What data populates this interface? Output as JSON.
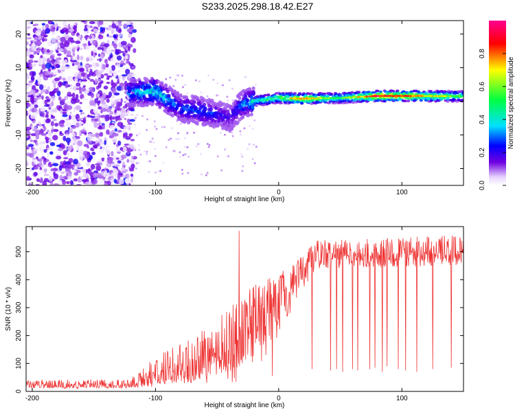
{
  "title": "S233.2025.298.18.42.E27",
  "chart_data": [
    {
      "type": "heatmap",
      "xlabel": "Height of straight line (km)",
      "ylabel": "Frequency (Hz)",
      "xlim": [
        -205,
        150
      ],
      "ylim": [
        -25,
        24
      ],
      "xticks": [
        -200,
        -100,
        0,
        100
      ],
      "yticks": [
        -20,
        -10,
        0,
        10,
        20
      ],
      "colorbar": {
        "label": "Normalized spectral amplitude",
        "range": [
          0.0,
          1.0
        ],
        "ticks": [
          0.0,
          0.2,
          0.4,
          0.6,
          0.8
        ],
        "tick_labels": [
          "0.0",
          "0.2",
          "0.4",
          "0.6",
          "0.8"
        ],
        "colormap": [
          "#ffffff",
          "#e8d4ff",
          "#7000e0",
          "#0000ff",
          "#00e0ff",
          "#00ff40",
          "#ffff00",
          "#ff0000",
          "#ff0090"
        ]
      },
      "ridge": [
        {
          "x": -120,
          "freq": 2.5,
          "amp": 0.35
        },
        {
          "x": -100,
          "freq": 3.0,
          "amp": 0.45
        },
        {
          "x": -80,
          "freq": -2.0,
          "amp": 0.3
        },
        {
          "x": -60,
          "freq": -3.0,
          "amp": 0.3
        },
        {
          "x": -40,
          "freq": -5.0,
          "amp": 0.2
        },
        {
          "x": -30,
          "freq": -1.0,
          "amp": 0.3
        },
        {
          "x": -20,
          "freq": 0.0,
          "amp": 0.45
        },
        {
          "x": 0,
          "freq": 1.0,
          "amp": 0.6
        },
        {
          "x": 20,
          "freq": 0.8,
          "amp": 0.8
        },
        {
          "x": 50,
          "freq": 1.0,
          "amp": 0.5
        },
        {
          "x": 80,
          "freq": 1.6,
          "amp": 0.9
        },
        {
          "x": 100,
          "freq": 1.6,
          "amp": 0.85
        },
        {
          "x": 150,
          "freq": 1.5,
          "amp": 0.55
        }
      ]
    },
    {
      "type": "line",
      "xlabel": "Height of straight line (km)",
      "ylabel": "SNR (10 * v/v)",
      "xlim": [
        -205,
        150
      ],
      "ylim": [
        0,
        590
      ],
      "xticks": [
        -200,
        -100,
        0,
        100
      ],
      "yticks": [
        0,
        100,
        200,
        300,
        400,
        500
      ],
      "color": "#ee3333",
      "series": [
        {
          "name": "SNR",
          "envelope": [
            {
              "x": -205,
              "low": 10,
              "mid": 20,
              "high": 40
            },
            {
              "x": -120,
              "low": 10,
              "mid": 22,
              "high": 45
            },
            {
              "x": -110,
              "low": 15,
              "mid": 45,
              "high": 90
            },
            {
              "x": -90,
              "low": 20,
              "mid": 60,
              "high": 150
            },
            {
              "x": -70,
              "low": 30,
              "mid": 80,
              "high": 200
            },
            {
              "x": -50,
              "low": 30,
              "mid": 110,
              "high": 260
            },
            {
              "x": -35,
              "low": 30,
              "mid": 150,
              "high": 320
            },
            {
              "x": -20,
              "low": 50,
              "mid": 250,
              "high": 380
            },
            {
              "x": 0,
              "low": 200,
              "mid": 340,
              "high": 420
            },
            {
              "x": 15,
              "low": 330,
              "mid": 400,
              "high": 470
            },
            {
              "x": 30,
              "low": 440,
              "mid": 490,
              "high": 540
            },
            {
              "x": 150,
              "low": 450,
              "mid": 500,
              "high": 560
            }
          ],
          "spikes": [
            {
              "x": -32,
              "value": 575
            },
            {
              "x": -12,
              "value": 300
            },
            {
              "x": 0,
              "value": 400
            }
          ],
          "dropouts": [
            {
              "x": -5,
              "value": 55
            },
            {
              "x": 27,
              "value": 80
            },
            {
              "x": 42,
              "value": 75
            },
            {
              "x": 47,
              "value": 80
            },
            {
              "x": 52,
              "value": 70
            },
            {
              "x": 60,
              "value": 80
            },
            {
              "x": 64,
              "value": 75
            },
            {
              "x": 74,
              "value": 80
            },
            {
              "x": 78,
              "value": 85
            },
            {
              "x": 84,
              "value": 70
            },
            {
              "x": 88,
              "value": 90
            },
            {
              "x": 97,
              "value": 80
            },
            {
              "x": 103,
              "value": 75
            },
            {
              "x": 112,
              "value": 70
            },
            {
              "x": 125,
              "value": 80
            },
            {
              "x": 140,
              "value": 85
            }
          ]
        }
      ]
    }
  ]
}
